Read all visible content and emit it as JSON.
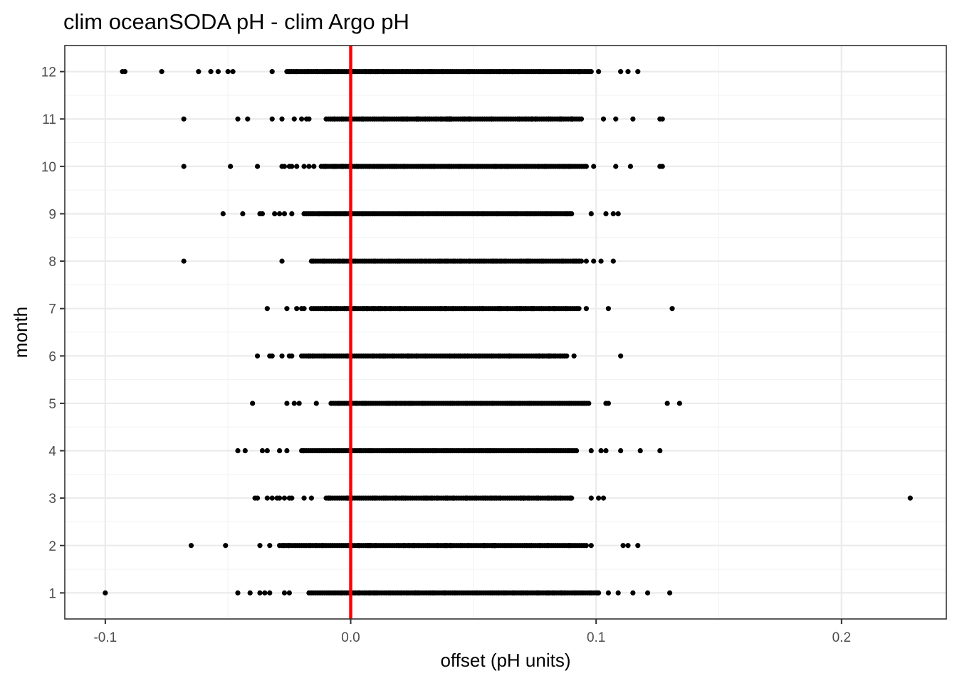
{
  "chart_data": {
    "type": "scatter",
    "title": "clim oceanSODA pH - clim Argo pH",
    "xlabel": "offset (pH units)",
    "ylabel": "month",
    "xlim": [
      -0.1165,
      0.2427
    ],
    "ylim": [
      0.45,
      12.55
    ],
    "x_ticks": [
      -0.1,
      0.0,
      0.1,
      0.2
    ],
    "x_tick_labels": [
      "-0.1",
      "0.0",
      "0.1",
      "0.2"
    ],
    "y_ticks": [
      1,
      2,
      3,
      4,
      5,
      6,
      7,
      8,
      9,
      10,
      11,
      12
    ],
    "y_tick_labels": [
      "1",
      "2",
      "3",
      "4",
      "5",
      "6",
      "7",
      "8",
      "9",
      "10",
      "11",
      "12"
    ],
    "grid": true,
    "reference_line": {
      "x": 0.0,
      "color": "#ff0000"
    },
    "point_color": "#000000",
    "series": [
      {
        "values": [
          {
            "y": 1,
            "dense": [
              -0.017,
              0.101
            ],
            "x": [
              -0.1,
              -0.046,
              -0.041,
              -0.037,
              -0.035,
              -0.033,
              -0.027,
              -0.025,
              0.105,
              0.109,
              0.115,
              0.121,
              0.13
            ]
          },
          {
            "y": 2,
            "dense": [
              -0.028,
              0.096
            ],
            "x": [
              -0.065,
              -0.051,
              -0.037,
              -0.033,
              -0.029,
              0.098,
              0.111,
              0.113,
              0.117
            ]
          },
          {
            "y": 3,
            "dense": [
              -0.01,
              0.09
            ],
            "x": [
              -0.039,
              -0.038,
              -0.034,
              -0.032,
              -0.03,
              -0.029,
              -0.027,
              -0.025,
              -0.024,
              -0.019,
              -0.016,
              0.098,
              0.101,
              0.103
            ]
          },
          {
            "y": 3,
            "x": [
              0.228
            ]
          },
          {
            "y": 4,
            "dense": [
              -0.02,
              0.092
            ],
            "x": [
              -0.046,
              -0.043,
              -0.036,
              -0.034,
              -0.029,
              -0.026,
              0.098,
              0.102,
              0.104,
              0.11,
              0.118,
              0.126
            ]
          },
          {
            "y": 5,
            "dense": [
              -0.008,
              0.097
            ],
            "x": [
              -0.04,
              -0.026,
              -0.023,
              -0.021,
              -0.014,
              0.104,
              0.105,
              0.129,
              0.134
            ]
          },
          {
            "y": 6,
            "dense": [
              -0.02,
              0.088
            ],
            "x": [
              -0.038,
              -0.033,
              -0.032,
              -0.028,
              -0.025,
              -0.024,
              0.091,
              0.11
            ]
          },
          {
            "y": 7,
            "dense": [
              -0.015,
              0.093
            ],
            "x": [
              -0.034,
              -0.026,
              -0.022,
              -0.02,
              -0.019,
              -0.016,
              -0.01,
              0.096,
              0.105,
              0.131
            ]
          },
          {
            "y": 8,
            "dense": [
              -0.016,
              0.094
            ],
            "x": [
              -0.068,
              -0.028,
              0.096,
              0.099,
              0.102,
              0.107
            ]
          },
          {
            "y": 9,
            "dense": [
              -0.019,
              0.09
            ],
            "x": [
              -0.052,
              -0.044,
              -0.037,
              -0.036,
              -0.031,
              -0.029,
              -0.027,
              -0.024,
              0.098,
              0.104,
              0.107,
              0.109
            ]
          },
          {
            "y": 10,
            "dense": [
              -0.012,
              0.096
            ],
            "x": [
              -0.068,
              -0.049,
              -0.038,
              -0.028,
              -0.027,
              -0.025,
              -0.024,
              -0.022,
              -0.019,
              -0.017,
              -0.015,
              0.099,
              0.108,
              0.114,
              0.126,
              0.127
            ]
          },
          {
            "y": 11,
            "dense": [
              -0.01,
              0.094
            ],
            "x": [
              -0.068,
              -0.046,
              -0.042,
              -0.032,
              -0.028,
              -0.023,
              -0.02,
              -0.018,
              -0.017,
              0.103,
              0.108,
              0.115,
              0.126,
              0.127
            ]
          },
          {
            "y": 12,
            "dense": [
              -0.026,
              0.098
            ],
            "x": [
              -0.093,
              -0.092,
              -0.077,
              -0.062,
              -0.057,
              -0.054,
              -0.05,
              -0.048,
              -0.032,
              0.101,
              0.11,
              0.113,
              0.117
            ]
          }
        ]
      }
    ]
  }
}
